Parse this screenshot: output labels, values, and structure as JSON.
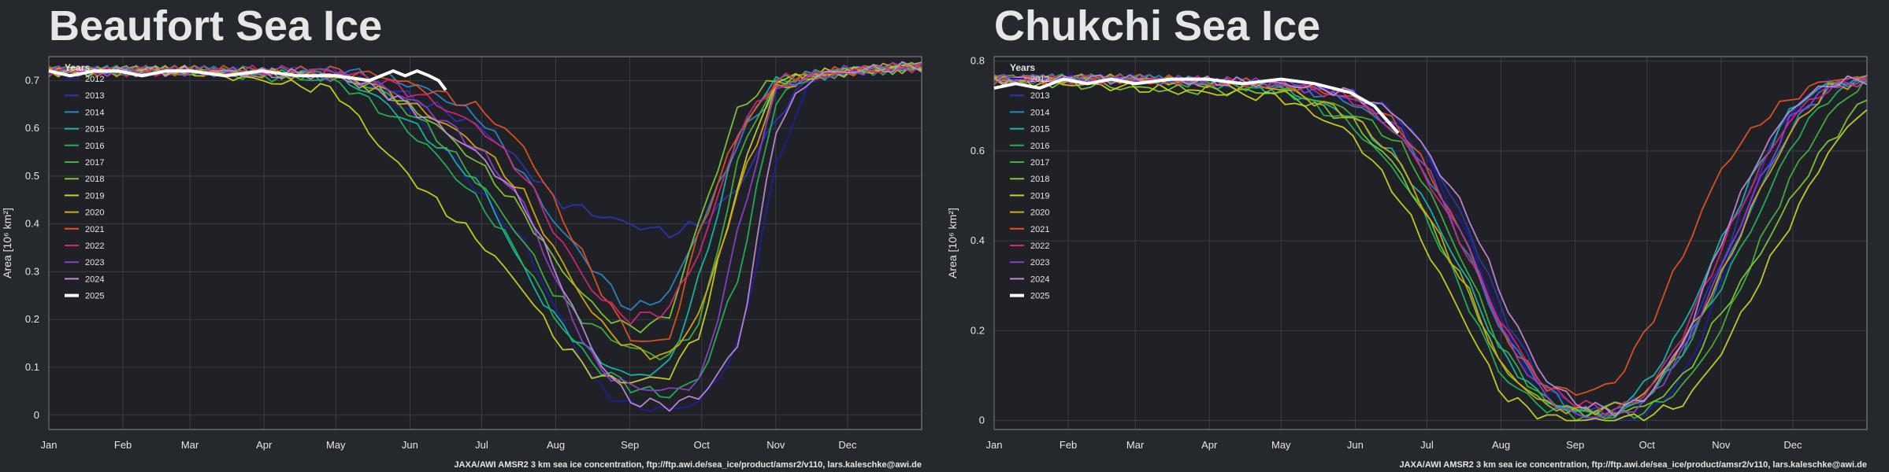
{
  "colors": {
    "background": "#25282d",
    "plot_background": "#1f2126",
    "grid": "#5a5e66",
    "text": "#e6e6e6",
    "series": {
      "2012": "#1f1fa0",
      "2013": "#2a35b8",
      "2014": "#2a86c8",
      "2015": "#12b8a8",
      "2016": "#22b255",
      "2017": "#3fb23a",
      "2018": "#7ec833",
      "2019": "#c8d21e",
      "2020": "#d8a810",
      "2021": "#e3521c",
      "2022": "#d3257a",
      "2023": "#8c40c8",
      "2024": "#c088d8",
      "2025": "#ffffff"
    }
  },
  "chart_data": [
    {
      "type": "line",
      "title": "Beaufort Sea Ice",
      "ylabel": "Area [10⁶ km²]",
      "xlabel": "",
      "ylim": [
        -0.03,
        0.75
      ],
      "yticks": [
        0,
        0.1,
        0.2,
        0.3,
        0.4,
        0.5,
        0.6,
        0.7
      ],
      "ytick_labels": [
        "0",
        "0.1",
        "0.2",
        "0.3",
        "0.4",
        "0.5",
        "0.6",
        "0.7"
      ],
      "xlim": [
        1,
        366
      ],
      "xticks": [
        1,
        32,
        60,
        91,
        121,
        152,
        182,
        213,
        244,
        274,
        305,
        335
      ],
      "xtick_labels": [
        "Jan",
        "Feb",
        "Mar",
        "Apr",
        "May",
        "Jun",
        "Jul",
        "Aug",
        "Sep",
        "Oct",
        "Nov",
        "Dec"
      ],
      "grid": true,
      "legend": {
        "title": "Years",
        "placement": "top-left"
      },
      "source": "JAXA/AWI AMSR2 3 km sea ice concentration, ftp://ftp.awi.de/sea_ice/product/amsr2/v110, lars.kaleschke@awi.de",
      "x": [
        1,
        60,
        121,
        140,
        160,
        182,
        200,
        213,
        230,
        244,
        260,
        274,
        290,
        305,
        320,
        335,
        366
      ],
      "series": [
        {
          "name": "2012",
          "y": [
            0.72,
            0.72,
            0.72,
            0.68,
            0.6,
            0.46,
            0.36,
            0.22,
            0.06,
            0.02,
            0.01,
            0.03,
            0.15,
            0.52,
            0.71,
            0.72,
            0.73
          ]
        },
        {
          "name": "2013",
          "y": [
            0.72,
            0.72,
            0.72,
            0.69,
            0.65,
            0.6,
            0.52,
            0.45,
            0.42,
            0.4,
            0.38,
            0.4,
            0.48,
            0.62,
            0.71,
            0.72,
            0.73
          ]
        },
        {
          "name": "2014",
          "y": [
            0.72,
            0.72,
            0.72,
            0.71,
            0.68,
            0.62,
            0.5,
            0.4,
            0.3,
            0.22,
            0.25,
            0.4,
            0.58,
            0.68,
            0.71,
            0.72,
            0.73
          ]
        },
        {
          "name": "2015",
          "y": [
            0.72,
            0.72,
            0.71,
            0.66,
            0.58,
            0.48,
            0.3,
            0.2,
            0.12,
            0.08,
            0.1,
            0.3,
            0.6,
            0.7,
            0.71,
            0.72,
            0.73
          ]
        },
        {
          "name": "2016",
          "y": [
            0.72,
            0.72,
            0.7,
            0.64,
            0.56,
            0.44,
            0.32,
            0.2,
            0.1,
            0.06,
            0.04,
            0.08,
            0.3,
            0.66,
            0.71,
            0.72,
            0.73
          ]
        },
        {
          "name": "2017",
          "y": [
            0.72,
            0.72,
            0.71,
            0.68,
            0.6,
            0.48,
            0.36,
            0.25,
            0.18,
            0.14,
            0.12,
            0.2,
            0.55,
            0.7,
            0.71,
            0.72,
            0.73
          ]
        },
        {
          "name": "2018",
          "y": [
            0.72,
            0.72,
            0.71,
            0.68,
            0.62,
            0.52,
            0.42,
            0.32,
            0.22,
            0.18,
            0.2,
            0.42,
            0.65,
            0.7,
            0.71,
            0.72,
            0.73
          ]
        },
        {
          "name": "2019",
          "y": [
            0.72,
            0.72,
            0.68,
            0.56,
            0.46,
            0.36,
            0.26,
            0.16,
            0.08,
            0.07,
            0.08,
            0.18,
            0.5,
            0.7,
            0.71,
            0.72,
            0.73
          ]
        },
        {
          "name": "2020",
          "y": [
            0.72,
            0.72,
            0.71,
            0.68,
            0.63,
            0.56,
            0.46,
            0.34,
            0.2,
            0.14,
            0.12,
            0.22,
            0.48,
            0.68,
            0.71,
            0.72,
            0.73
          ]
        },
        {
          "name": "2021",
          "y": [
            0.72,
            0.72,
            0.72,
            0.71,
            0.68,
            0.64,
            0.56,
            0.44,
            0.28,
            0.16,
            0.15,
            0.4,
            0.6,
            0.69,
            0.71,
            0.72,
            0.73
          ]
        },
        {
          "name": "2022",
          "y": [
            0.72,
            0.72,
            0.72,
            0.7,
            0.66,
            0.6,
            0.5,
            0.38,
            0.25,
            0.2,
            0.22,
            0.35,
            0.6,
            0.7,
            0.71,
            0.72,
            0.73
          ]
        },
        {
          "name": "2023",
          "y": [
            0.72,
            0.72,
            0.71,
            0.69,
            0.64,
            0.55,
            0.44,
            0.28,
            0.1,
            0.06,
            0.05,
            0.07,
            0.4,
            0.68,
            0.71,
            0.72,
            0.73
          ]
        },
        {
          "name": "2024",
          "y": [
            0.72,
            0.72,
            0.71,
            0.68,
            0.62,
            0.54,
            0.44,
            0.3,
            0.12,
            0.03,
            0.02,
            0.04,
            0.15,
            0.6,
            0.71,
            0.72,
            0.73
          ]
        }
      ],
      "current": {
        "name": "2025",
        "x": [
          1,
          10,
          20,
          30,
          40,
          50,
          60,
          75,
          90,
          105,
          121,
          135,
          145,
          150,
          155,
          160,
          164,
          167
        ],
        "y": [
          0.72,
          0.71,
          0.72,
          0.72,
          0.71,
          0.72,
          0.72,
          0.71,
          0.72,
          0.71,
          0.71,
          0.7,
          0.72,
          0.71,
          0.72,
          0.71,
          0.7,
          0.68
        ]
      }
    },
    {
      "type": "line",
      "title": "Chukchi Sea Ice",
      "ylabel": "Area [10⁶ km²]",
      "xlabel": "",
      "ylim": [
        -0.02,
        0.81
      ],
      "yticks": [
        0,
        0.2,
        0.4,
        0.6,
        0.8
      ],
      "ytick_labels": [
        "0",
        "0.2",
        "0.4",
        "0.6",
        "0.8"
      ],
      "xlim": [
        1,
        366
      ],
      "xticks": [
        1,
        32,
        60,
        91,
        121,
        152,
        182,
        213,
        244,
        274,
        305,
        335
      ],
      "xtick_labels": [
        "Jan",
        "Feb",
        "Mar",
        "Apr",
        "May",
        "Jun",
        "Jul",
        "Aug",
        "Sep",
        "Oct",
        "Nov",
        "Dec"
      ],
      "grid": true,
      "legend": {
        "title": "Years",
        "placement": "top-left"
      },
      "source": "JAXA/AWI AMSR2 3 km sea ice concentration, ftp://ftp.awi.de/sea_ice/product/amsr2/v110, lars.kaleschke@awi.de",
      "x": [
        1,
        60,
        121,
        150,
        170,
        182,
        200,
        213,
        230,
        244,
        260,
        274,
        290,
        305,
        320,
        335,
        350,
        366
      ],
      "series": [
        {
          "name": "2012",
          "y": [
            0.76,
            0.76,
            0.75,
            0.72,
            0.66,
            0.58,
            0.4,
            0.22,
            0.06,
            0.01,
            0.0,
            0.01,
            0.1,
            0.3,
            0.52,
            0.68,
            0.75,
            0.76
          ]
        },
        {
          "name": "2013",
          "y": [
            0.76,
            0.76,
            0.75,
            0.73,
            0.68,
            0.6,
            0.42,
            0.25,
            0.08,
            0.03,
            0.02,
            0.05,
            0.18,
            0.35,
            0.55,
            0.7,
            0.75,
            0.76
          ]
        },
        {
          "name": "2014",
          "y": [
            0.76,
            0.76,
            0.75,
            0.71,
            0.64,
            0.55,
            0.36,
            0.2,
            0.08,
            0.02,
            0.02,
            0.05,
            0.16,
            0.32,
            0.5,
            0.66,
            0.74,
            0.76
          ]
        },
        {
          "name": "2015",
          "y": [
            0.76,
            0.76,
            0.74,
            0.68,
            0.58,
            0.48,
            0.3,
            0.15,
            0.05,
            0.02,
            0.03,
            0.08,
            0.22,
            0.4,
            0.56,
            0.7,
            0.75,
            0.76
          ]
        },
        {
          "name": "2016",
          "y": [
            0.76,
            0.76,
            0.74,
            0.66,
            0.55,
            0.45,
            0.25,
            0.1,
            0.03,
            0.01,
            0.01,
            0.05,
            0.16,
            0.3,
            0.45,
            0.62,
            0.72,
            0.76
          ]
        },
        {
          "name": "2017",
          "y": [
            0.76,
            0.76,
            0.74,
            0.69,
            0.62,
            0.52,
            0.32,
            0.16,
            0.05,
            0.02,
            0.01,
            0.02,
            0.08,
            0.2,
            0.38,
            0.55,
            0.68,
            0.76
          ]
        },
        {
          "name": "2018",
          "y": [
            0.76,
            0.74,
            0.73,
            0.67,
            0.56,
            0.45,
            0.28,
            0.12,
            0.04,
            0.02,
            0.02,
            0.03,
            0.1,
            0.24,
            0.36,
            0.5,
            0.62,
            0.72
          ]
        },
        {
          "name": "2019",
          "y": [
            0.76,
            0.74,
            0.72,
            0.64,
            0.5,
            0.38,
            0.2,
            0.06,
            0.01,
            0.0,
            0.0,
            0.01,
            0.04,
            0.15,
            0.3,
            0.45,
            0.6,
            0.7
          ]
        },
        {
          "name": "2020",
          "y": [
            0.76,
            0.76,
            0.74,
            0.68,
            0.58,
            0.46,
            0.28,
            0.12,
            0.04,
            0.02,
            0.03,
            0.06,
            0.18,
            0.32,
            0.5,
            0.65,
            0.74,
            0.76
          ]
        },
        {
          "name": "2021",
          "y": [
            0.76,
            0.76,
            0.75,
            0.72,
            0.66,
            0.56,
            0.38,
            0.2,
            0.08,
            0.06,
            0.08,
            0.2,
            0.38,
            0.56,
            0.66,
            0.72,
            0.76,
            0.76
          ]
        },
        {
          "name": "2022",
          "y": [
            0.76,
            0.76,
            0.75,
            0.72,
            0.64,
            0.54,
            0.36,
            0.22,
            0.08,
            0.04,
            0.02,
            0.06,
            0.2,
            0.38,
            0.55,
            0.68,
            0.74,
            0.76
          ]
        },
        {
          "name": "2023",
          "y": [
            0.76,
            0.76,
            0.75,
            0.72,
            0.65,
            0.56,
            0.38,
            0.2,
            0.06,
            0.01,
            0.01,
            0.04,
            0.16,
            0.34,
            0.52,
            0.68,
            0.74,
            0.76
          ]
        },
        {
          "name": "2024",
          "y": [
            0.76,
            0.76,
            0.75,
            0.73,
            0.68,
            0.6,
            0.45,
            0.28,
            0.1,
            0.04,
            0.02,
            0.05,
            0.18,
            0.4,
            0.58,
            0.7,
            0.75,
            0.76
          ]
        }
      ],
      "current": {
        "name": "2025",
        "x": [
          1,
          10,
          20,
          30,
          40,
          50,
          60,
          75,
          90,
          105,
          121,
          135,
          150,
          160,
          165,
          170
        ],
        "y": [
          0.74,
          0.75,
          0.74,
          0.76,
          0.75,
          0.76,
          0.75,
          0.76,
          0.76,
          0.75,
          0.76,
          0.75,
          0.73,
          0.7,
          0.67,
          0.64
        ]
      }
    }
  ]
}
